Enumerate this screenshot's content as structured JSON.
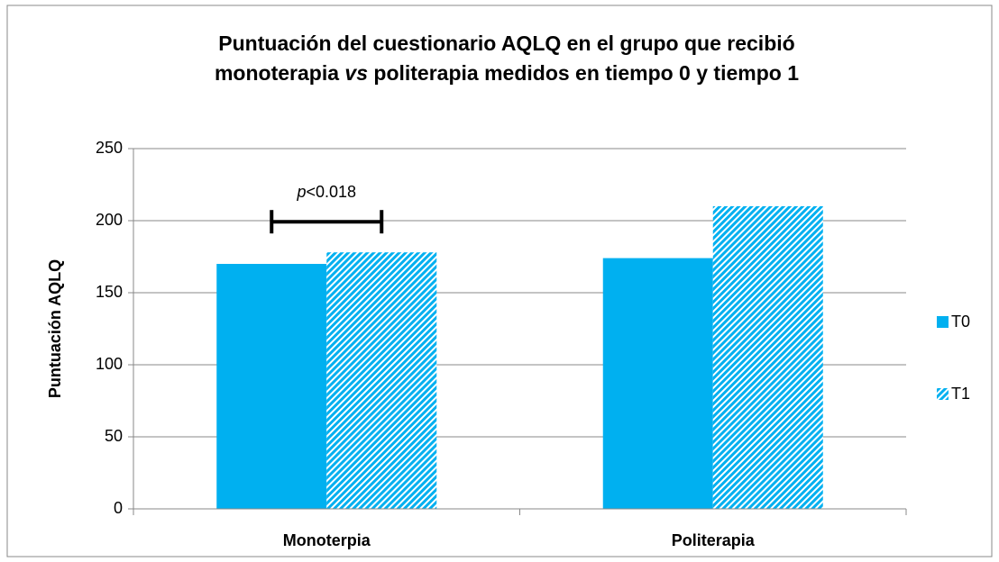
{
  "chart_data": {
    "type": "bar",
    "title": [
      "Puntuación del cuestionario AQLQ en el grupo que recibió",
      "monoterapia",
      "vs",
      "politerapia medidos en tiempo 0 y tiempo 1"
    ],
    "y_label": "Puntuación AQLQ",
    "categories": [
      "Monoterpia",
      "Politerapia"
    ],
    "series": [
      {
        "name": "T0",
        "color": "#00b0f0",
        "fill": "solid",
        "values": [
          170,
          174
        ]
      },
      {
        "name": "T1",
        "color": "#00b0f0",
        "fill": "hatch",
        "values": [
          178,
          210
        ]
      }
    ],
    "annotation": [
      "p",
      "<0.018"
    ],
    "ylim": [
      0,
      250
    ],
    "yticks": [
      0,
      50,
      100,
      150,
      200,
      250
    ],
    "grid": true,
    "legend": "right"
  }
}
